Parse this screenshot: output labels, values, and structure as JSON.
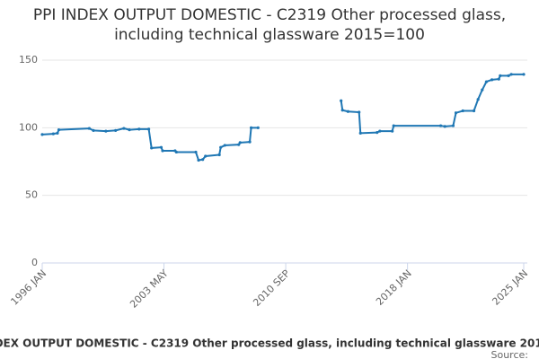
{
  "chart_data": {
    "type": "line",
    "title": "PPI INDEX OUTPUT DOMESTIC - C2319 Other processed glass, including technical glassware 2015=100",
    "source": "Source:",
    "x": [
      "1996-01",
      "1996-09",
      "1996-12",
      "1997-01",
      "1998-11",
      "1999-02",
      "1999-11",
      "2000-06",
      "2000-12",
      "2001-04",
      "2001-11",
      "2002-06",
      "2002-08",
      "2003-03",
      "2003-04",
      "2004-01",
      "2004-02",
      "2005-04",
      "2005-06",
      "2005-09",
      "2005-11",
      "2006-09",
      "2006-10",
      "2007-01",
      "2007-11",
      "2007-12",
      "2008-07",
      "2008-08",
      "2009-01",
      "2011-06",
      "2014-01",
      "2014-02",
      "2014-06",
      "2015-02",
      "2015-03",
      "2016-03",
      "2016-05",
      "2017-02",
      "2017-03",
      "2020-01",
      "2020-04",
      "2020-10",
      "2020-12",
      "2021-05",
      "2022-01",
      "2022-04",
      "2022-07",
      "2022-10",
      "2023-02",
      "2023-07",
      "2023-08",
      "2024-02",
      "2024-04",
      "2025-01"
    ],
    "series": [
      {
        "name": "PPI INDEX OUTPUT DOMESTIC - C2319",
        "color": "#1f77b4",
        "values": [
          95,
          95.5,
          96,
          98.5,
          99.5,
          98,
          97.5,
          98,
          99.5,
          98.5,
          99,
          99,
          85,
          85.5,
          83,
          83,
          82,
          82,
          76,
          76.5,
          79,
          80,
          85.5,
          87,
          87.5,
          89,
          89.5,
          100,
          100,
          null,
          120,
          113,
          112,
          111.5,
          96,
          96.5,
          97.5,
          97.5,
          101.5,
          101.5,
          101,
          101.5,
          111,
          112.5,
          112.5,
          121,
          128,
          134,
          135.5,
          136,
          138.5,
          138.5,
          139.5,
          139.5
        ]
      }
    ],
    "xlim": [
      "1996-01",
      "2025-01"
    ],
    "xticks": [
      {
        "value": "1996-01",
        "label": "1996 JAN"
      },
      {
        "value": "2003-05",
        "label": "2003 MAY"
      },
      {
        "value": "2010-09",
        "label": "2010 SEP"
      },
      {
        "value": "2018-01",
        "label": "2018 JAN"
      },
      {
        "value": "2025-01",
        "label": "2025 JAN"
      }
    ],
    "ylim": [
      0,
      150
    ],
    "yticks": [
      0,
      50,
      100,
      150
    ],
    "grid": true
  }
}
